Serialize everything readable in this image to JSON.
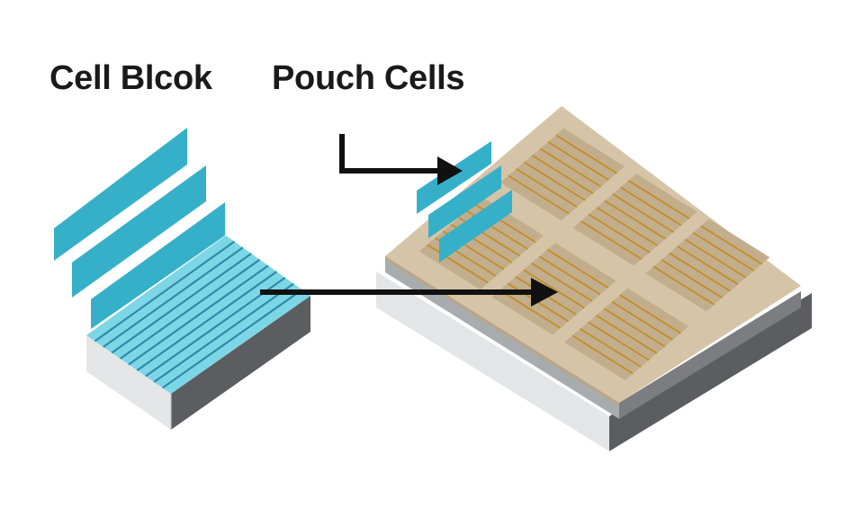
{
  "labels": {
    "cell_block": "Cell Blcok",
    "pouch_cells": "Pouch Cells"
  },
  "colors": {
    "teal": "#35b0c8",
    "teal_light": "#7dd6e6",
    "teal_stripe": "#2e8aa8",
    "tray_top": "#d6c4a8",
    "tray_slot": "#c2ae8c",
    "copper_line": "#c48a1e",
    "arrow": "#111111",
    "base_light": "#e3e5e7",
    "base_dark": "#5b5d60"
  },
  "tray": {
    "module_count": 6
  },
  "cell_block": {
    "separator_sheets": 3
  }
}
